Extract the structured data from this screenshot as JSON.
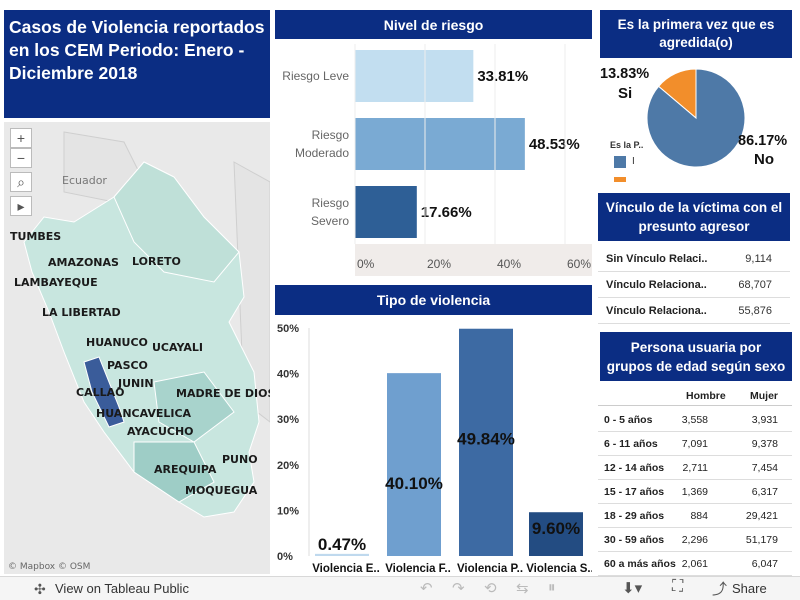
{
  "main_title": "Casos de Violencia reportados en los CEM Periodo: Enero - Diciembre 2018",
  "map": {
    "country_label": "Ecuador",
    "attribution": "© Mapbox © OSM",
    "regions": [
      "TUMBES",
      "AMAZONAS",
      "LORETO",
      "LAMBAYEQUE",
      "LA LIBERTAD",
      "HUANUCO",
      "UCAYALI",
      "PASCO",
      "JUNIN",
      "CALLAO",
      "MADRE DE DIOS",
      "HUANCAVELICA",
      "AYACUCHO",
      "PUNO",
      "AREQUIPA",
      "MOQUEGUA"
    ],
    "controls": [
      "+",
      "−",
      "⌕",
      "▸"
    ]
  },
  "nivel_riesgo": {
    "title": "Nivel de riesgo",
    "chart_data": {
      "type": "bar",
      "orientation": "horizontal",
      "categories": [
        "Riesgo Leve",
        "Riesgo Moderado",
        "Riesgo Severo"
      ],
      "values": [
        33.81,
        48.53,
        17.66
      ],
      "value_labels": [
        "33.81%",
        "48.53%",
        "17.66%"
      ],
      "colors": [
        "#c2def0",
        "#7aaad3",
        "#2e5f96"
      ],
      "xticks": [
        "0%",
        "20%",
        "40%",
        "60%"
      ],
      "xlim": [
        0,
        60
      ]
    }
  },
  "tipo_violencia": {
    "title": "Tipo de violencia",
    "chart_data": {
      "type": "bar",
      "categories": [
        "Violencia E..",
        "Violencia F..",
        "Violencia P..",
        "Violencia S.."
      ],
      "values": [
        0.47,
        40.1,
        49.84,
        9.6
      ],
      "value_labels": [
        "0.47%",
        "40.10%",
        "49.84%",
        "9.60%"
      ],
      "colors": [
        "#bfd9ee",
        "#6f9fcf",
        "#3d6aa3",
        "#234c82"
      ],
      "yticks": [
        "50%",
        "40%",
        "30%",
        "20%",
        "10%",
        "0%"
      ],
      "ylim": [
        0,
        50
      ]
    }
  },
  "primera_vez": {
    "title": "Es la primera vez que es agredida(o)",
    "chart_data": {
      "type": "pie",
      "categories": [
        "Si",
        "No"
      ],
      "values": [
        13.83,
        86.17
      ],
      "value_labels": [
        "13.83%",
        "86.17%"
      ],
      "colors": [
        "#f28e2b",
        "#4e79a7"
      ]
    },
    "legend_title": "Es la P..",
    "legend_items": [
      "I",
      ""
    ]
  },
  "vinculo": {
    "title": "Vínculo de la víctima con el presunto agresor",
    "rows": [
      {
        "name": "Sin Vínculo Relaci..",
        "value": "9,114"
      },
      {
        "name": "Vínculo Relaciona..",
        "value": "68,707"
      },
      {
        "name": "Vínculo Relaciona..",
        "value": "55,876"
      }
    ]
  },
  "edad": {
    "title": "Persona usuaria  por grupos de edad según sexo",
    "headers": [
      "Hombre",
      "Mujer"
    ],
    "rows": [
      {
        "group": "0 - 5 años",
        "hombre": "3,558",
        "mujer": "3,931"
      },
      {
        "group": "6 - 11 años",
        "hombre": "7,091",
        "mujer": "9,378"
      },
      {
        "group": "12 - 14 años",
        "hombre": "2,711",
        "mujer": "7,454"
      },
      {
        "group": "15 - 17 años",
        "hombre": "1,369",
        "mujer": "6,317"
      },
      {
        "group": "18 - 29 años",
        "hombre": "884",
        "mujer": "29,421"
      },
      {
        "group": "30 - 59 años",
        "hombre": "2,296",
        "mujer": "51,179"
      },
      {
        "group": "60 a más años",
        "hombre": "2,061",
        "mujer": "6,047"
      }
    ]
  },
  "footer": {
    "view_label": "View on Tableau Public",
    "share_label": "Share"
  }
}
